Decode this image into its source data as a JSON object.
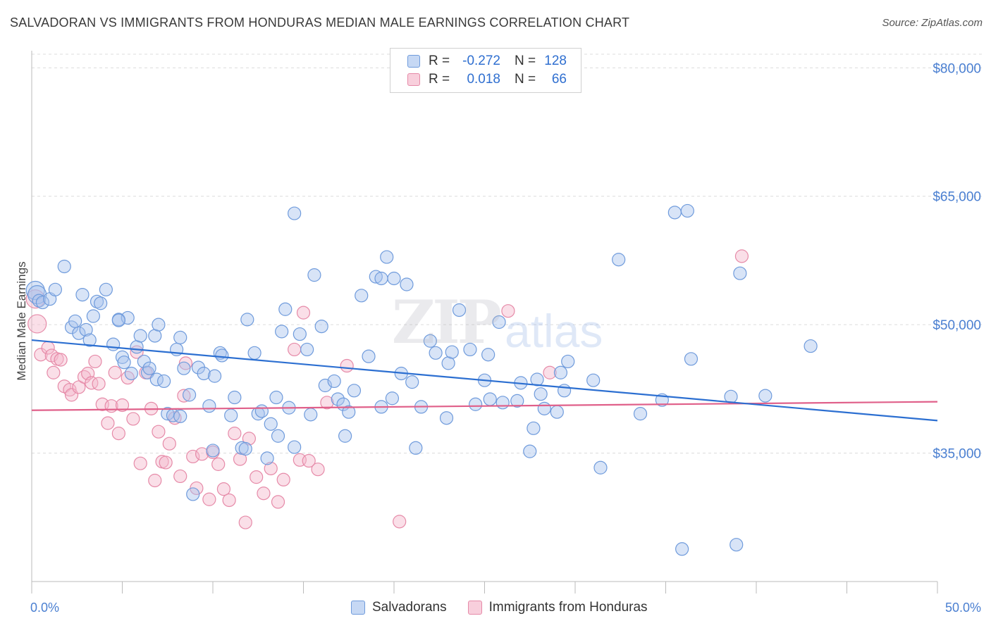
{
  "title": "SALVADORAN VS IMMIGRANTS FROM HONDURAS MEDIAN MALE EARNINGS CORRELATION CHART",
  "source": "Source: ZipAtlas.com",
  "watermark": {
    "zip": "ZIP",
    "atlas": "atlas"
  },
  "legend": {
    "rows": [
      {
        "r_label": "R =",
        "r_value": "-0.272",
        "n_label": "N =",
        "n_value": "128"
      },
      {
        "r_label": "R =",
        "r_value": "0.018",
        "n_label": "N =",
        "n_value": "66"
      }
    ]
  },
  "bottom_legend": [
    "Salvadorans",
    "Immigrants from Honduras"
  ],
  "colors": {
    "blue_fill": "#a9c4ee",
    "blue_stroke": "#6f9bdc",
    "blue_line": "#2c6fd1",
    "pink_fill": "#f5b8cb",
    "pink_stroke": "#e68aa8",
    "pink_line": "#e0608a",
    "grid": "#dcdcdc",
    "tick_text": "#4a7fd1"
  },
  "chart_data": {
    "type": "scatter",
    "title": "SALVADORAN VS IMMIGRANTS FROM HONDURAS MEDIAN MALE EARNINGS CORRELATION CHART",
    "xlabel": "",
    "ylabel": "Median Male Earnings",
    "xlim": [
      0,
      50
    ],
    "ylim": [
      20000,
      82000
    ],
    "x_tick_labels": [
      "0.0%",
      "50.0%"
    ],
    "y_ticks": [
      35000,
      50000,
      65000,
      80000
    ],
    "y_tick_labels": [
      "$35,000",
      "$50,000",
      "$65,000",
      "$80,000"
    ],
    "grid": true,
    "legend_position": "top-center",
    "series": [
      {
        "name": "Salvadorans",
        "color": "#6f9bdc",
        "trend": {
          "x": [
            0,
            50
          ],
          "y": [
            48200,
            38800
          ]
        },
        "points": [
          [
            0.2,
            54000
          ],
          [
            0.3,
            53500
          ],
          [
            0.4,
            52800
          ],
          [
            0.6,
            52600
          ],
          [
            1.0,
            53000
          ],
          [
            1.3,
            54100
          ],
          [
            1.8,
            56800
          ],
          [
            2.2,
            49700
          ],
          [
            2.4,
            50400
          ],
          [
            2.6,
            49000
          ],
          [
            2.8,
            53500
          ],
          [
            3.0,
            49400
          ],
          [
            3.2,
            48200
          ],
          [
            3.4,
            51000
          ],
          [
            3.6,
            52700
          ],
          [
            3.8,
            52500
          ],
          [
            4.1,
            54100
          ],
          [
            4.5,
            47700
          ],
          [
            4.8,
            50600
          ],
          [
            5.0,
            46200
          ],
          [
            5.1,
            45600
          ],
          [
            5.3,
            50800
          ],
          [
            5.5,
            44300
          ],
          [
            5.8,
            47400
          ],
          [
            6.0,
            48700
          ],
          [
            6.2,
            45700
          ],
          [
            6.4,
            44400
          ],
          [
            6.5,
            44900
          ],
          [
            6.8,
            48700
          ],
          [
            6.9,
            43600
          ],
          [
            7.0,
            50000
          ],
          [
            7.3,
            43400
          ],
          [
            7.5,
            39600
          ],
          [
            7.8,
            39400
          ],
          [
            8.0,
            47100
          ],
          [
            8.2,
            48500
          ],
          [
            8.4,
            44900
          ],
          [
            8.7,
            41800
          ],
          [
            8.9,
            30200
          ],
          [
            9.2,
            45000
          ],
          [
            9.5,
            44300
          ],
          [
            9.8,
            40500
          ],
          [
            10.0,
            35300
          ],
          [
            10.1,
            44000
          ],
          [
            10.4,
            46700
          ],
          [
            10.5,
            46400
          ],
          [
            11.0,
            39400
          ],
          [
            11.2,
            41500
          ],
          [
            11.6,
            35600
          ],
          [
            11.8,
            35500
          ],
          [
            11.9,
            50600
          ],
          [
            12.3,
            46700
          ],
          [
            12.5,
            39600
          ],
          [
            12.7,
            39900
          ],
          [
            13.0,
            34400
          ],
          [
            13.2,
            38400
          ],
          [
            13.5,
            41500
          ],
          [
            13.6,
            37000
          ],
          [
            13.8,
            49200
          ],
          [
            14.0,
            51800
          ],
          [
            14.2,
            40300
          ],
          [
            14.5,
            35700
          ],
          [
            14.5,
            63000
          ],
          [
            14.8,
            48900
          ],
          [
            15.2,
            47100
          ],
          [
            15.4,
            39500
          ],
          [
            15.6,
            55800
          ],
          [
            16.0,
            49800
          ],
          [
            16.2,
            42900
          ],
          [
            16.7,
            43400
          ],
          [
            16.9,
            41300
          ],
          [
            17.2,
            40700
          ],
          [
            17.3,
            37000
          ],
          [
            17.5,
            39800
          ],
          [
            17.8,
            42300
          ],
          [
            18.2,
            53400
          ],
          [
            18.6,
            46300
          ],
          [
            19.0,
            55600
          ],
          [
            19.3,
            55400
          ],
          [
            19.3,
            40400
          ],
          [
            19.6,
            57900
          ],
          [
            19.9,
            41400
          ],
          [
            20.0,
            55400
          ],
          [
            20.4,
            44300
          ],
          [
            20.7,
            54700
          ],
          [
            21.0,
            43300
          ],
          [
            21.2,
            35600
          ],
          [
            21.5,
            40400
          ],
          [
            22.0,
            48100
          ],
          [
            22.3,
            46700
          ],
          [
            22.9,
            39100
          ],
          [
            23.0,
            45500
          ],
          [
            23.2,
            46800
          ],
          [
            23.6,
            51700
          ],
          [
            24.2,
            47100
          ],
          [
            24.5,
            40700
          ],
          [
            25.0,
            43500
          ],
          [
            25.2,
            46500
          ],
          [
            25.3,
            41300
          ],
          [
            25.8,
            50300
          ],
          [
            26.0,
            40900
          ],
          [
            26.8,
            41100
          ],
          [
            27.0,
            43200
          ],
          [
            27.5,
            35200
          ],
          [
            27.7,
            37900
          ],
          [
            27.9,
            43600
          ],
          [
            28.1,
            41900
          ],
          [
            28.3,
            40200
          ],
          [
            29.0,
            39800
          ],
          [
            29.2,
            44400
          ],
          [
            29.4,
            42300
          ],
          [
            29.6,
            45700
          ],
          [
            31.0,
            43500
          ],
          [
            31.4,
            33300
          ],
          [
            32.4,
            57600
          ],
          [
            33.6,
            39600
          ],
          [
            34.8,
            41200
          ],
          [
            35.9,
            23800
          ],
          [
            36.2,
            63300
          ],
          [
            35.5,
            63100
          ],
          [
            36.4,
            46000
          ],
          [
            38.6,
            41600
          ],
          [
            38.9,
            24300
          ],
          [
            39.1,
            56000
          ],
          [
            40.5,
            41700
          ],
          [
            43.0,
            47500
          ],
          [
            4.8,
            50500
          ],
          [
            8.2,
            39300
          ]
        ]
      },
      {
        "name": "Immigrants from Honduras",
        "color": "#e68aa8",
        "trend": {
          "x": [
            0,
            50
          ],
          "y": [
            40000,
            41000
          ]
        },
        "points": [
          [
            0.2,
            53000
          ],
          [
            0.3,
            50100
          ],
          [
            0.5,
            46500
          ],
          [
            0.9,
            47300
          ],
          [
            1.1,
            46400
          ],
          [
            1.2,
            44400
          ],
          [
            1.4,
            46000
          ],
          [
            1.6,
            45900
          ],
          [
            1.8,
            42800
          ],
          [
            2.1,
            42400
          ],
          [
            2.2,
            41800
          ],
          [
            2.6,
            42700
          ],
          [
            2.9,
            43900
          ],
          [
            3.1,
            44300
          ],
          [
            3.3,
            43200
          ],
          [
            3.5,
            45700
          ],
          [
            3.7,
            43100
          ],
          [
            3.9,
            40700
          ],
          [
            4.2,
            38500
          ],
          [
            4.4,
            40500
          ],
          [
            4.6,
            44400
          ],
          [
            4.8,
            37300
          ],
          [
            5.0,
            40600
          ],
          [
            5.3,
            43800
          ],
          [
            5.6,
            39000
          ],
          [
            5.8,
            46800
          ],
          [
            6.0,
            33800
          ],
          [
            6.3,
            44400
          ],
          [
            6.6,
            40200
          ],
          [
            6.8,
            31800
          ],
          [
            7.0,
            37500
          ],
          [
            7.2,
            34000
          ],
          [
            7.4,
            33900
          ],
          [
            7.6,
            36100
          ],
          [
            7.9,
            39100
          ],
          [
            8.2,
            32300
          ],
          [
            8.4,
            41700
          ],
          [
            8.5,
            45500
          ],
          [
            8.9,
            34600
          ],
          [
            9.1,
            30900
          ],
          [
            9.4,
            34900
          ],
          [
            9.8,
            29600
          ],
          [
            10.0,
            35100
          ],
          [
            10.3,
            33700
          ],
          [
            10.6,
            30800
          ],
          [
            10.9,
            29500
          ],
          [
            11.2,
            37300
          ],
          [
            11.5,
            34300
          ],
          [
            11.8,
            26900
          ],
          [
            12.0,
            36700
          ],
          [
            12.4,
            32200
          ],
          [
            12.8,
            30300
          ],
          [
            13.2,
            33200
          ],
          [
            13.6,
            29300
          ],
          [
            13.9,
            31900
          ],
          [
            14.5,
            47100
          ],
          [
            14.8,
            34200
          ],
          [
            15.0,
            51400
          ],
          [
            15.3,
            34100
          ],
          [
            15.8,
            33100
          ],
          [
            16.3,
            40900
          ],
          [
            17.4,
            45200
          ],
          [
            20.3,
            27000
          ],
          [
            26.3,
            51600
          ],
          [
            28.6,
            44400
          ],
          [
            39.2,
            58000
          ]
        ]
      }
    ]
  }
}
